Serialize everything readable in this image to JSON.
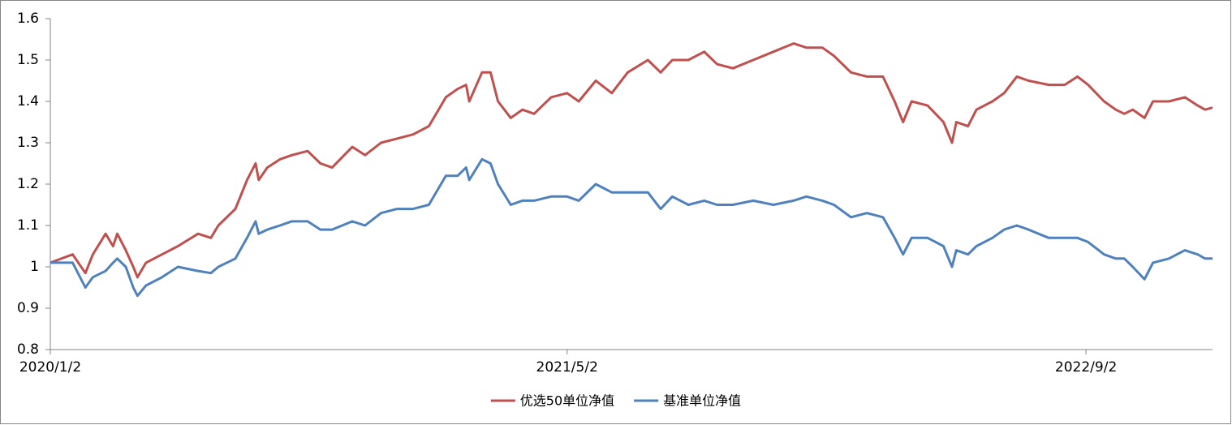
{
  "chart_data": {
    "type": "line",
    "x": [
      "2020/1/2",
      "2020/1/23",
      "2020/2/4",
      "2020/2/11",
      "2020/2/23",
      "2020/3/1",
      "2020/3/5",
      "2020/3/13",
      "2020/3/20",
      "2020/3/24",
      "2020/4/1",
      "2020/4/16",
      "2020/5/1",
      "2020/5/20",
      "2020/6/1",
      "2020/6/8",
      "2020/6/24",
      "2020/7/5",
      "2020/7/13",
      "2020/7/16",
      "2020/7/24",
      "2020/8/5",
      "2020/8/16",
      "2020/8/31",
      "2020/9/12",
      "2020/9/23",
      "2020/10/12",
      "2020/10/24",
      "2020/11/8",
      "2020/11/23",
      "2020/12/8",
      "2020/12/23",
      "2021/1/8",
      "2021/1/19",
      "2021/1/27",
      "2021/1/30",
      "2021/2/11",
      "2021/2/19",
      "2021/2/26",
      "2021/3/10",
      "2021/3/21",
      "2021/4/1",
      "2021/4/17",
      "2021/5/2",
      "2021/5/13",
      "2021/5/29",
      "2021/6/13",
      "2021/6/28",
      "2021/7/17",
      "2021/7/29",
      "2021/8/9",
      "2021/8/24",
      "2021/9/8",
      "2021/9/20",
      "2021/10/5",
      "2021/10/24",
      "2021/11/12",
      "2021/12/1",
      "2021/12/13",
      "2021/12/28",
      "2022/1/8",
      "2022/1/24",
      "2022/2/8",
      "2022/2/23",
      "2022/3/6",
      "2022/3/14",
      "2022/3/22",
      "2022/4/6",
      "2022/4/21",
      "2022/4/29",
      "2022/5/3",
      "2022/5/14",
      "2022/5/22",
      "2022/6/6",
      "2022/6/17",
      "2022/6/29",
      "2022/7/10",
      "2022/7/29",
      "2022/8/13",
      "2022/8/25",
      "2022/9/4",
      "2022/9/19",
      "2022/9/30",
      "2022/10/8",
      "2022/10/16",
      "2022/10/27",
      "2022/11/4",
      "2022/11/19",
      "2022/12/4",
      "2022/12/16",
      "2022/12/23",
      "2022/12/30"
    ],
    "series": [
      {
        "name": "优选50单位净值",
        "color": "#c0504d",
        "values": [
          1.01,
          1.03,
          0.985,
          1.03,
          1.08,
          1.05,
          1.08,
          1.04,
          1.0,
          0.975,
          1.01,
          1.03,
          1.05,
          1.08,
          1.07,
          1.1,
          1.14,
          1.21,
          1.25,
          1.21,
          1.24,
          1.26,
          1.27,
          1.28,
          1.25,
          1.24,
          1.29,
          1.27,
          1.3,
          1.31,
          1.32,
          1.34,
          1.41,
          1.43,
          1.44,
          1.4,
          1.47,
          1.47,
          1.4,
          1.36,
          1.38,
          1.37,
          1.41,
          1.42,
          1.4,
          1.45,
          1.42,
          1.47,
          1.5,
          1.47,
          1.5,
          1.5,
          1.52,
          1.49,
          1.48,
          1.5,
          1.52,
          1.54,
          1.53,
          1.53,
          1.51,
          1.47,
          1.46,
          1.46,
          1.4,
          1.35,
          1.4,
          1.39,
          1.35,
          1.3,
          1.35,
          1.34,
          1.38,
          1.4,
          1.42,
          1.46,
          1.45,
          1.44,
          1.44,
          1.46,
          1.44,
          1.4,
          1.38,
          1.37,
          1.38,
          1.36,
          1.4,
          1.4,
          1.41,
          1.39,
          1.38,
          1.385
        ]
      },
      {
        "name": "基准单位净值",
        "color": "#4f81bd",
        "values": [
          1.01,
          1.01,
          0.95,
          0.975,
          0.99,
          1.01,
          1.02,
          1.0,
          0.95,
          0.93,
          0.955,
          0.975,
          1.0,
          0.99,
          0.985,
          1.0,
          1.02,
          1.07,
          1.11,
          1.08,
          1.09,
          1.1,
          1.11,
          1.11,
          1.09,
          1.09,
          1.11,
          1.1,
          1.13,
          1.14,
          1.14,
          1.15,
          1.22,
          1.22,
          1.24,
          1.21,
          1.26,
          1.25,
          1.2,
          1.15,
          1.16,
          1.16,
          1.17,
          1.17,
          1.16,
          1.2,
          1.18,
          1.18,
          1.18,
          1.14,
          1.17,
          1.15,
          1.16,
          1.15,
          1.15,
          1.16,
          1.15,
          1.16,
          1.17,
          1.16,
          1.15,
          1.12,
          1.13,
          1.12,
          1.07,
          1.03,
          1.07,
          1.07,
          1.05,
          1.0,
          1.04,
          1.03,
          1.05,
          1.07,
          1.09,
          1.1,
          1.09,
          1.07,
          1.07,
          1.07,
          1.06,
          1.03,
          1.02,
          1.02,
          1.0,
          0.97,
          1.01,
          1.02,
          1.04,
          1.03,
          1.02,
          1.02
        ]
      }
    ],
    "xlim": [
      "2020/1/2",
      "2022/12/30"
    ],
    "xticks": [
      "2020/1/2",
      "2021/5/2",
      "2022/9/2"
    ],
    "ylim": [
      0.8,
      1.6
    ],
    "yticks": [
      0.8,
      0.9,
      1,
      1.1,
      1.2,
      1.3,
      1.4,
      1.5,
      1.6
    ],
    "legend": "bottom"
  }
}
